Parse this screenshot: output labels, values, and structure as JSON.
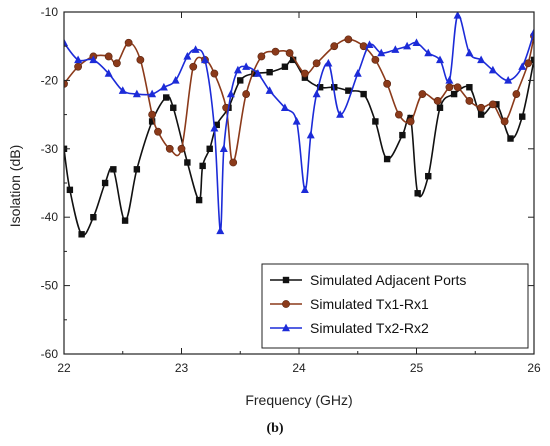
{
  "caption": "(b)",
  "chart_data": {
    "type": "line",
    "title": "",
    "xlabel": "Frequency (GHz)",
    "ylabel": "Isolation (dB)",
    "xlim": [
      22,
      26
    ],
    "ylim": [
      -60,
      -10
    ],
    "xticks": [
      "22",
      "23",
      "24",
      "25",
      "26"
    ],
    "yticks": [
      "-10",
      "-20",
      "-30",
      "-40",
      "-50",
      "-60"
    ],
    "grid": false,
    "legend_position": "bottom-right",
    "series": [
      {
        "name": "Simulated Adjacent Ports",
        "color": "#111111",
        "marker": "square",
        "x": [
          22.0,
          22.05,
          22.15,
          22.25,
          22.35,
          22.42,
          22.52,
          22.62,
          22.75,
          22.87,
          22.93,
          23.05,
          23.15,
          23.18,
          23.24,
          23.3,
          23.4,
          23.5,
          23.62,
          23.75,
          23.88,
          23.95,
          24.05,
          24.18,
          24.3,
          24.42,
          24.55,
          24.65,
          24.75,
          24.88,
          24.95,
          25.01,
          25.1,
          25.2,
          25.32,
          25.45,
          25.55,
          25.68,
          25.8,
          25.9,
          26.0
        ],
        "y": [
          -30,
          -36,
          -42.5,
          -40,
          -35,
          -33,
          -40.5,
          -33,
          -26,
          -22.5,
          -24,
          -32,
          -37.5,
          -32.5,
          -30,
          -26.5,
          -24,
          -20,
          -19,
          -18.8,
          -18,
          -17,
          -19.6,
          -21,
          -21,
          -21.5,
          -22,
          -26,
          -31.5,
          -28,
          -25.5,
          -36.5,
          -34,
          -24,
          -22,
          -21,
          -25,
          -23.5,
          -28.5,
          -25.3,
          -17
        ]
      },
      {
        "name": "Simulated Tx1-Rx1",
        "color": "#8b3a1a",
        "marker": "circle",
        "x": [
          22.0,
          22.12,
          22.25,
          22.38,
          22.45,
          22.55,
          22.65,
          22.75,
          22.8,
          22.9,
          23.0,
          23.1,
          23.2,
          23.28,
          23.38,
          23.44,
          23.55,
          23.68,
          23.8,
          23.92,
          24.05,
          24.15,
          24.3,
          24.42,
          24.55,
          24.65,
          24.75,
          24.85,
          24.95,
          25.05,
          25.18,
          25.28,
          25.35,
          25.45,
          25.55,
          25.65,
          25.75,
          25.85,
          25.95,
          26.0
        ],
        "y": [
          -20.5,
          -18,
          -16.5,
          -16.5,
          -17.5,
          -14.5,
          -17,
          -25,
          -27.5,
          -30,
          -30,
          -18,
          -17,
          -19,
          -24,
          -32,
          -22,
          -16.5,
          -15.8,
          -16,
          -19,
          -17.5,
          -15,
          -14,
          -15,
          -17,
          -20.5,
          -25,
          -26,
          -22,
          -23,
          -21,
          -21,
          -23,
          -24,
          -23.5,
          -26,
          -22,
          -17.5,
          -13.5
        ]
      },
      {
        "name": "Simulated Tx2-Rx2",
        "color": "#1c2bd8",
        "marker": "triangle",
        "x": [
          22.0,
          22.12,
          22.25,
          22.38,
          22.5,
          22.62,
          22.75,
          22.85,
          22.95,
          23.05,
          23.12,
          23.2,
          23.28,
          23.33,
          23.36,
          23.42,
          23.48,
          23.55,
          23.65,
          23.75,
          23.88,
          23.98,
          24.05,
          24.1,
          24.15,
          24.25,
          24.35,
          24.5,
          24.6,
          24.7,
          24.82,
          24.92,
          25.0,
          25.1,
          25.2,
          25.28,
          25.35,
          25.45,
          25.55,
          25.65,
          25.78,
          25.9,
          26.0
        ],
        "y": [
          -14.5,
          -17,
          -17,
          -19,
          -21.5,
          -22,
          -22,
          -21,
          -20,
          -16.5,
          -15.5,
          -17,
          -27,
          -42,
          -30,
          -22,
          -18.5,
          -18,
          -19,
          -21.5,
          -24,
          -26,
          -36,
          -28,
          -22,
          -17.5,
          -25,
          -19,
          -14.8,
          -16,
          -15.5,
          -15,
          -14.5,
          -16,
          -17,
          -20,
          -10.5,
          -16,
          -17,
          -18.5,
          -20,
          -18,
          -13
        ]
      }
    ]
  }
}
